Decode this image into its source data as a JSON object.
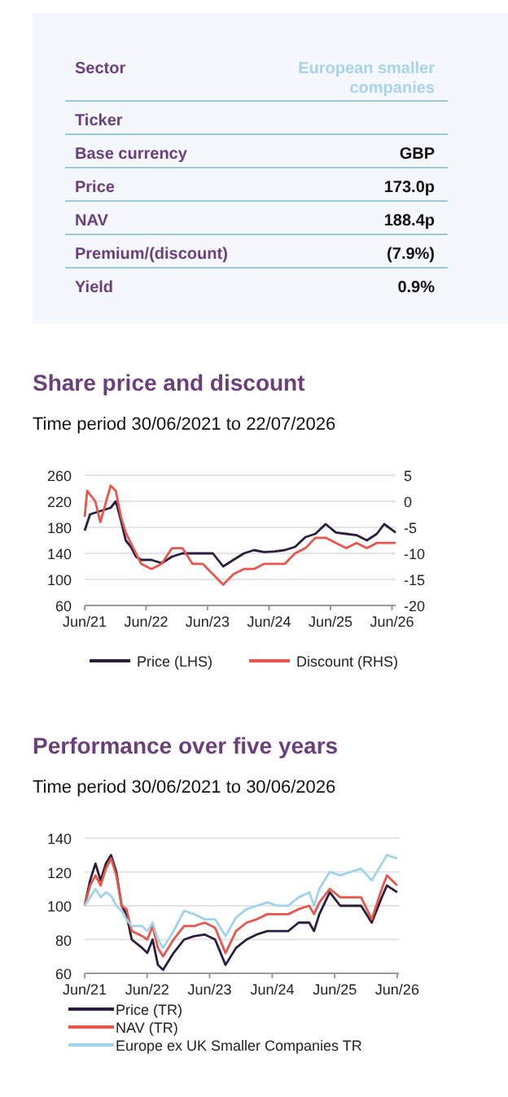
{
  "chart_data": [
    {
      "type": "other",
      "categories": [
        "Sector",
        "Ticker",
        "Base currency",
        "Price",
        "NAV",
        "Premium/(discount)",
        "Yield"
      ],
      "value_labels": [
        "European smaller companies",
        null,
        "GBP",
        "173.0p",
        "188.4p",
        "(7.9%)",
        "0.9%"
      ]
    },
    {
      "type": "line",
      "title": "Share price and discount",
      "subtitle": "Time period 30/06/2021 to 22/07/2026",
      "xlim": [
        "2021-06-30",
        "2026-07-22"
      ],
      "xticks": [
        {
          "value": "2021-06-30",
          "label": "Jun/21"
        },
        {
          "value": "2022-06-30",
          "label": "Jun/22"
        },
        {
          "value": "2023-06-30",
          "label": "Jun/23"
        },
        {
          "value": "2024-06-30",
          "label": "Jun/24"
        },
        {
          "value": "2025-06-30",
          "label": "Jun/25"
        },
        {
          "value": "2026-06-30",
          "label": "Jun/26"
        }
      ],
      "ylim": [
        60,
        260
      ],
      "yticks": [
        60,
        100,
        140,
        180,
        220,
        260
      ],
      "y2lim": [
        -20,
        5
      ],
      "y2ticks": [
        -20,
        -15,
        -10,
        -5,
        0,
        5
      ],
      "grid": "y",
      "legend": "bottom",
      "series": [
        {
          "name": "Price (LHS)",
          "color": "#2b1d3d",
          "x": [
            "2021-06-30",
            "2021-08-01",
            "2021-10-01",
            "2021-12-01",
            "2022-01-01",
            "2022-02-01",
            "2022-03-01",
            "2022-04-01",
            "2022-05-01",
            "2022-06-01",
            "2022-08-01",
            "2022-10-01",
            "2022-12-01",
            "2023-02-01",
            "2023-04-01",
            "2023-06-01",
            "2023-08-01",
            "2023-10-01",
            "2023-12-01",
            "2024-02-01",
            "2024-04-01",
            "2024-06-01",
            "2024-08-01",
            "2024-10-01",
            "2024-12-01",
            "2025-02-01",
            "2025-04-01",
            "2025-06-01",
            "2025-08-01",
            "2025-10-01",
            "2025-12-01",
            "2026-02-01",
            "2026-04-01",
            "2026-05-15",
            "2026-07-22"
          ],
          "values": [
            175,
            200,
            205,
            210,
            220,
            190,
            160,
            150,
            135,
            130,
            130,
            125,
            135,
            140,
            140,
            140,
            140,
            120,
            130,
            140,
            145,
            142,
            143,
            145,
            150,
            165,
            170,
            185,
            172,
            170,
            168,
            160,
            170,
            185,
            172
          ]
        },
        {
          "name": "Discount (RHS)",
          "color": "#e8564b",
          "axis": "y2",
          "x": [
            "2021-06-30",
            "2021-07-15",
            "2021-09-01",
            "2021-10-01",
            "2021-12-01",
            "2022-01-01",
            "2022-02-01",
            "2022-03-01",
            "2022-05-01",
            "2022-06-01",
            "2022-08-01",
            "2022-10-01",
            "2022-12-01",
            "2023-02-01",
            "2023-04-01",
            "2023-06-01",
            "2023-08-01",
            "2023-10-01",
            "2023-12-01",
            "2024-02-01",
            "2024-04-01",
            "2024-06-01",
            "2024-08-01",
            "2024-10-01",
            "2024-12-01",
            "2025-02-01",
            "2025-04-01",
            "2025-06-01",
            "2025-08-01",
            "2025-10-01",
            "2025-12-01",
            "2026-02-01",
            "2026-04-01",
            "2026-06-01",
            "2026-07-22"
          ],
          "values": [
            -3,
            2,
            0,
            -4,
            3,
            2,
            -3,
            -6,
            -10,
            -12,
            -13,
            -12,
            -9,
            -9,
            -12,
            -12,
            -14,
            -16,
            -14,
            -13,
            -13,
            -12,
            -12,
            -12,
            -10,
            -9,
            -7,
            -7,
            -8,
            -9,
            -8,
            -9,
            -8,
            -8,
            -8
          ]
        }
      ]
    },
    {
      "type": "line",
      "title": "Performance over five years",
      "subtitle": "Time period 30/06/2021 to 30/06/2026",
      "xlim": [
        "2021-06-30",
        "2026-07-10"
      ],
      "xticks": [
        {
          "value": "2021-06-30",
          "label": "Jun/21"
        },
        {
          "value": "2022-06-30",
          "label": "Jun/22"
        },
        {
          "value": "2023-06-30",
          "label": "Jun/23"
        },
        {
          "value": "2024-06-30",
          "label": "Jun/24"
        },
        {
          "value": "2025-06-30",
          "label": "Jun/25"
        },
        {
          "value": "2026-06-30",
          "label": "Jun/26"
        }
      ],
      "ylim": [
        60,
        140
      ],
      "yticks": [
        60,
        80,
        100,
        120,
        140
      ],
      "grid": "y",
      "legend": "bottom",
      "x": [
        "2021-06-30",
        "2021-08-01",
        "2021-09-01",
        "2021-10-01",
        "2021-11-01",
        "2021-12-01",
        "2022-01-01",
        "2022-02-01",
        "2022-03-01",
        "2022-04-01",
        "2022-06-01",
        "2022-07-01",
        "2022-08-01",
        "2022-09-01",
        "2022-10-01",
        "2022-12-01",
        "2023-02-01",
        "2023-04-01",
        "2023-06-01",
        "2023-08-01",
        "2023-10-01",
        "2023-12-01",
        "2024-02-01",
        "2024-04-01",
        "2024-06-01",
        "2024-08-01",
        "2024-10-01",
        "2024-12-01",
        "2025-02-01",
        "2025-03-01",
        "2025-04-01",
        "2025-06-01",
        "2025-08-01",
        "2025-10-01",
        "2025-12-01",
        "2026-02-01",
        "2026-04-01",
        "2026-05-01",
        "2026-06-30"
      ],
      "series": [
        {
          "name": "Price (TR)",
          "color": "#2b1d3d",
          "values": [
            100,
            115,
            125,
            115,
            125,
            130,
            120,
            100,
            95,
            80,
            75,
            72,
            80,
            65,
            62,
            72,
            80,
            82,
            83,
            80,
            65,
            75,
            80,
            83,
            85,
            85,
            85,
            90,
            90,
            85,
            95,
            108,
            100,
            100,
            100,
            90,
            105,
            112,
            108
          ]
        },
        {
          "name": "NAV (TR)",
          "color": "#e8564b",
          "values": [
            100,
            112,
            118,
            112,
            122,
            128,
            118,
            100,
            98,
            85,
            82,
            80,
            88,
            75,
            70,
            80,
            88,
            88,
            90,
            87,
            72,
            85,
            90,
            92,
            95,
            95,
            95,
            98,
            100,
            95,
            102,
            110,
            105,
            105,
            105,
            92,
            110,
            118,
            112
          ]
        },
        {
          "name": "Europe ex UK Smaller Companies TR",
          "color": "#9fd3ec",
          "values": [
            100,
            105,
            110,
            105,
            108,
            106,
            100,
            97,
            92,
            88,
            88,
            85,
            90,
            80,
            75,
            85,
            97,
            95,
            92,
            92,
            82,
            93,
            98,
            100,
            102,
            100,
            100,
            105,
            108,
            100,
            110,
            120,
            118,
            120,
            122,
            115,
            125,
            130,
            128
          ]
        }
      ]
    }
  ]
}
